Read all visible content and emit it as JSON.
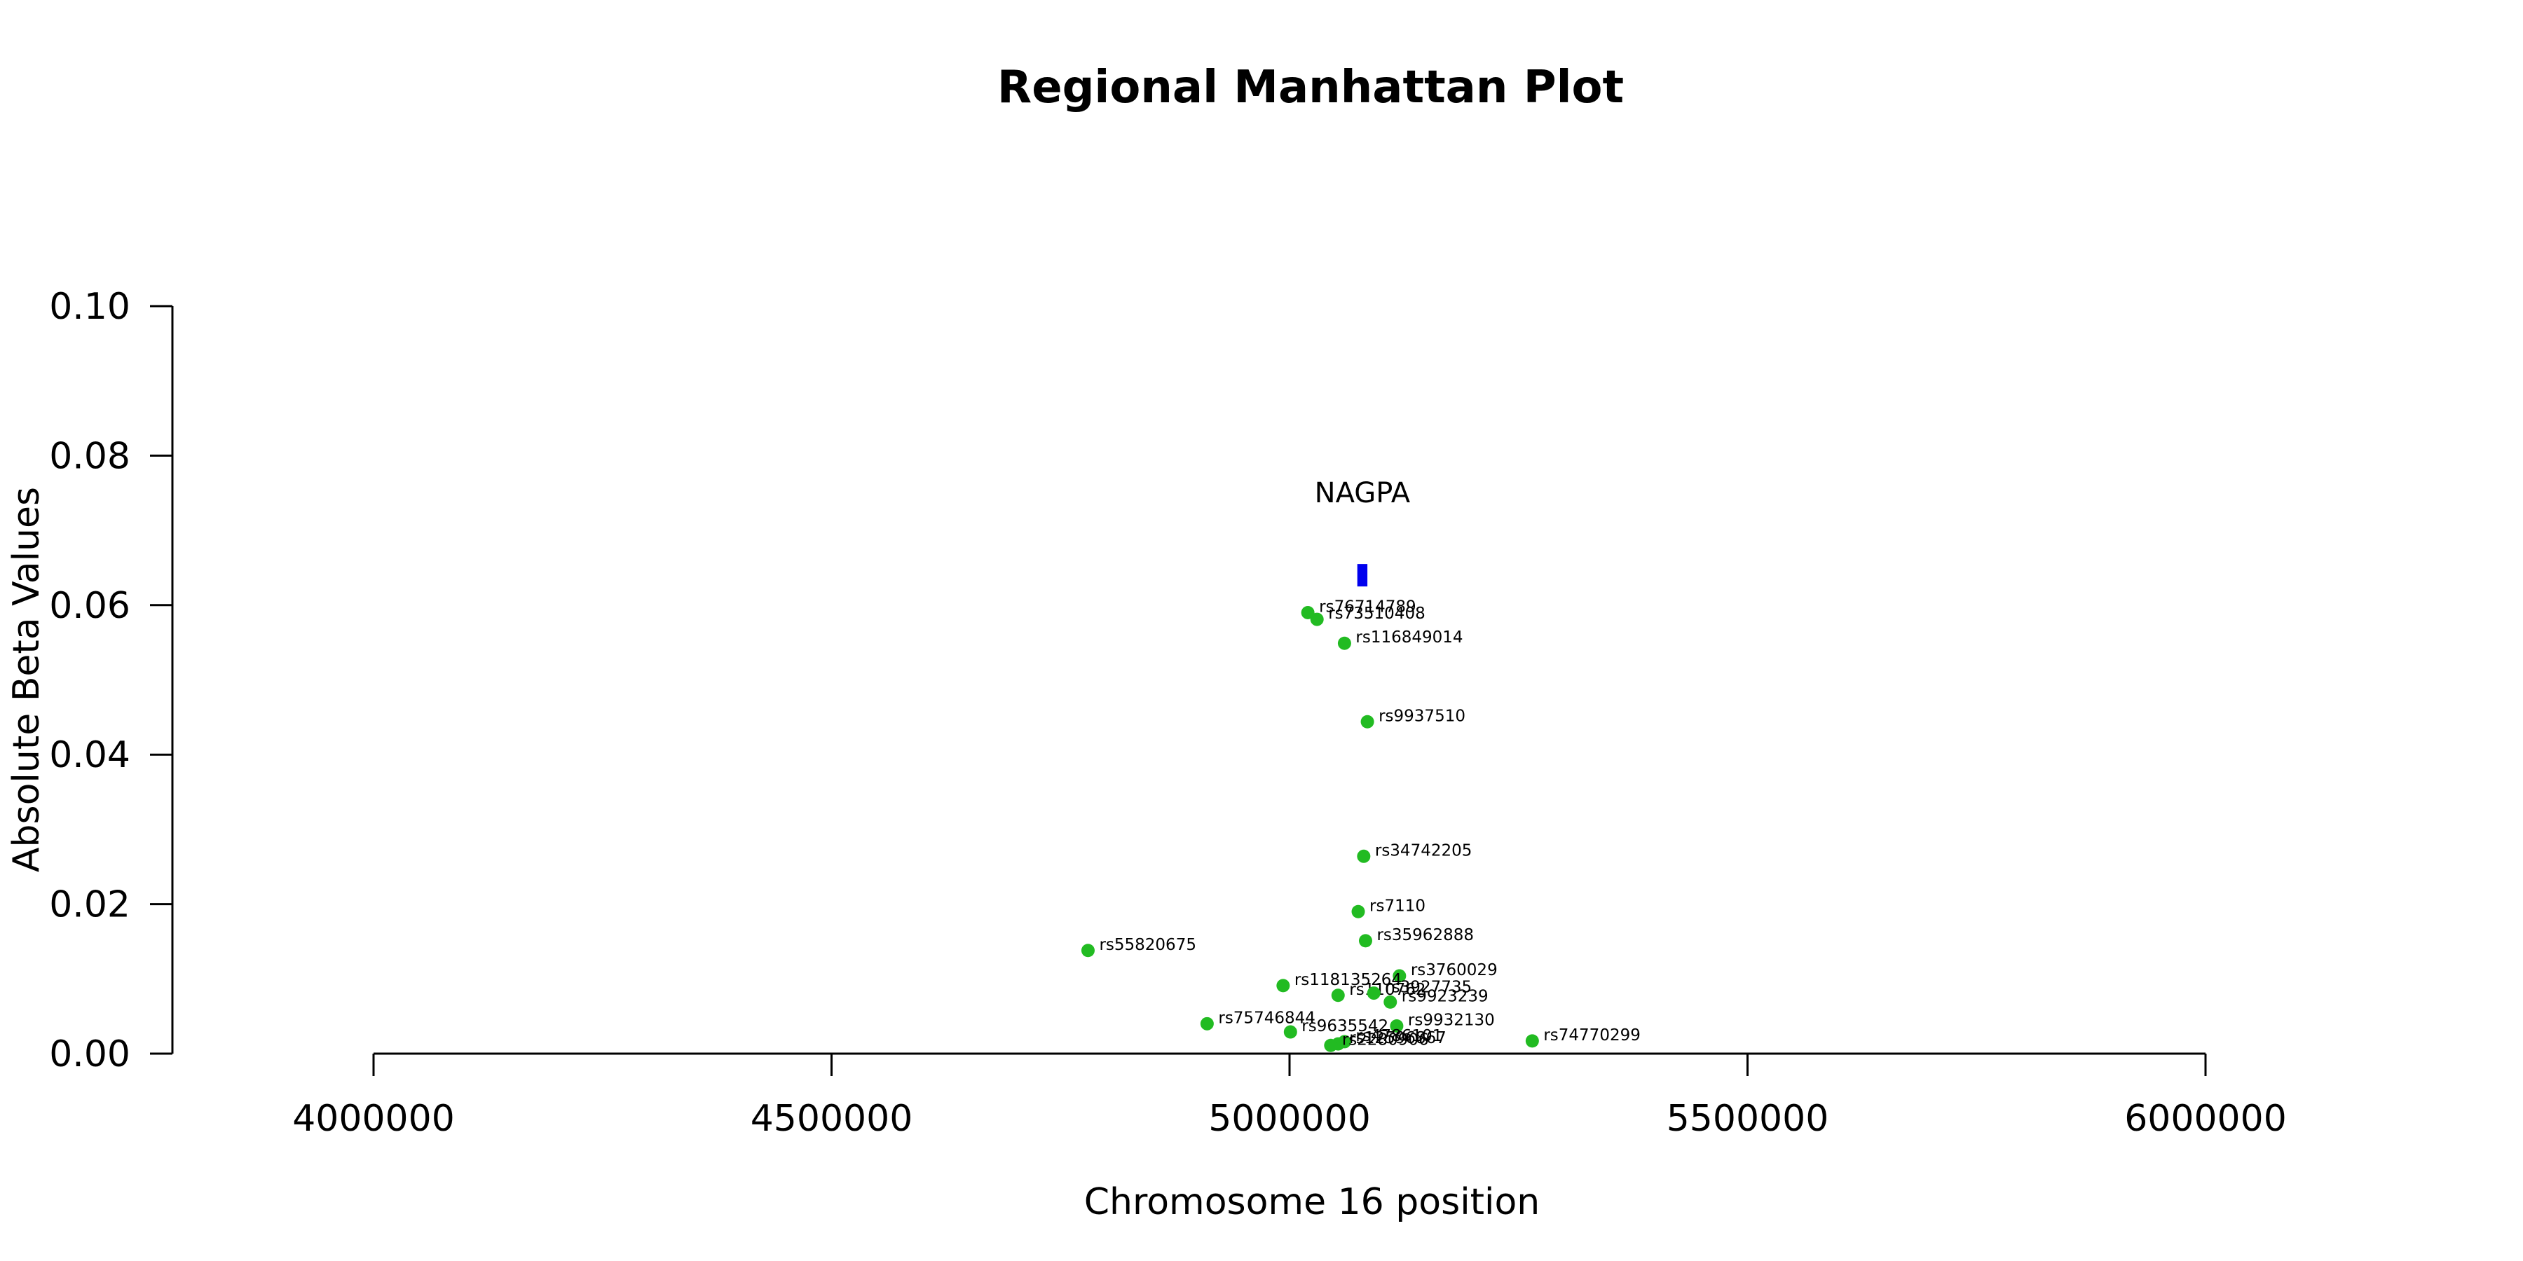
{
  "chart_data": {
    "type": "scatter",
    "title": "Regional Manhattan Plot",
    "xlabel": "Chromosome 16 position",
    "ylabel": "Absolute Beta Values",
    "xlim": [
      4000000,
      6000000
    ],
    "ylim": [
      0,
      0.1
    ],
    "x_ticks": [
      4000000,
      4500000,
      5000000,
      5500000,
      6000000
    ],
    "y_ticks": [
      0.0,
      0.02,
      0.04,
      0.06,
      0.08,
      0.1
    ],
    "x_tick_labels": [
      "4000000",
      "4500000",
      "5000000",
      "5500000",
      "6000000"
    ],
    "y_tick_labels": [
      "0.00",
      "0.02",
      "0.04",
      "0.06",
      "0.08",
      "0.10"
    ],
    "grid": false,
    "point_color": "#22bb22",
    "gene_color": "#0000ee",
    "gene": {
      "name": "NAGPA",
      "start": 5074000,
      "end": 5085000,
      "y_low": 0.0625,
      "y_high": 0.0655
    },
    "points": [
      {
        "label": "rs76714789",
        "x": 5020000,
        "y": 0.059
      },
      {
        "label": "rs73510408",
        "x": 5030000,
        "y": 0.0581
      },
      {
        "label": "rs116849014",
        "x": 5060000,
        "y": 0.0549
      },
      {
        "label": "rs9937510",
        "x": 5085000,
        "y": 0.0444
      },
      {
        "label": "rs34742205",
        "x": 5081000,
        "y": 0.0264
      },
      {
        "label": "rs7110",
        "x": 5075000,
        "y": 0.019
      },
      {
        "label": "rs35962888",
        "x": 5083000,
        "y": 0.0151
      },
      {
        "label": "rs55820675",
        "x": 4780000,
        "y": 0.0138
      },
      {
        "label": "rs3760029",
        "x": 5120000,
        "y": 0.0104
      },
      {
        "label": "rs118135264",
        "x": 4993000,
        "y": 0.0091
      },
      {
        "label": "rs110762",
        "x": 5053000,
        "y": 0.0078
      },
      {
        "label": "rs3927735",
        "x": 5092000,
        "y": 0.0081
      },
      {
        "label": "rs9923239",
        "x": 5110000,
        "y": 0.0069
      },
      {
        "label": "rs75746844",
        "x": 4910000,
        "y": 0.004
      },
      {
        "label": "rs9932130",
        "x": 5117000,
        "y": 0.0037
      },
      {
        "label": "rs9635542",
        "x": 5001000,
        "y": 0.0029
      },
      {
        "label": "rs4786101",
        "x": 5060000,
        "y": 0.0016
      },
      {
        "label": "rs12596867",
        "x": 5053000,
        "y": 0.0013
      },
      {
        "label": "rs2280906",
        "x": 5045000,
        "y": 0.0011
      },
      {
        "label": "rs74770299",
        "x": 5265000,
        "y": 0.0017
      }
    ]
  }
}
